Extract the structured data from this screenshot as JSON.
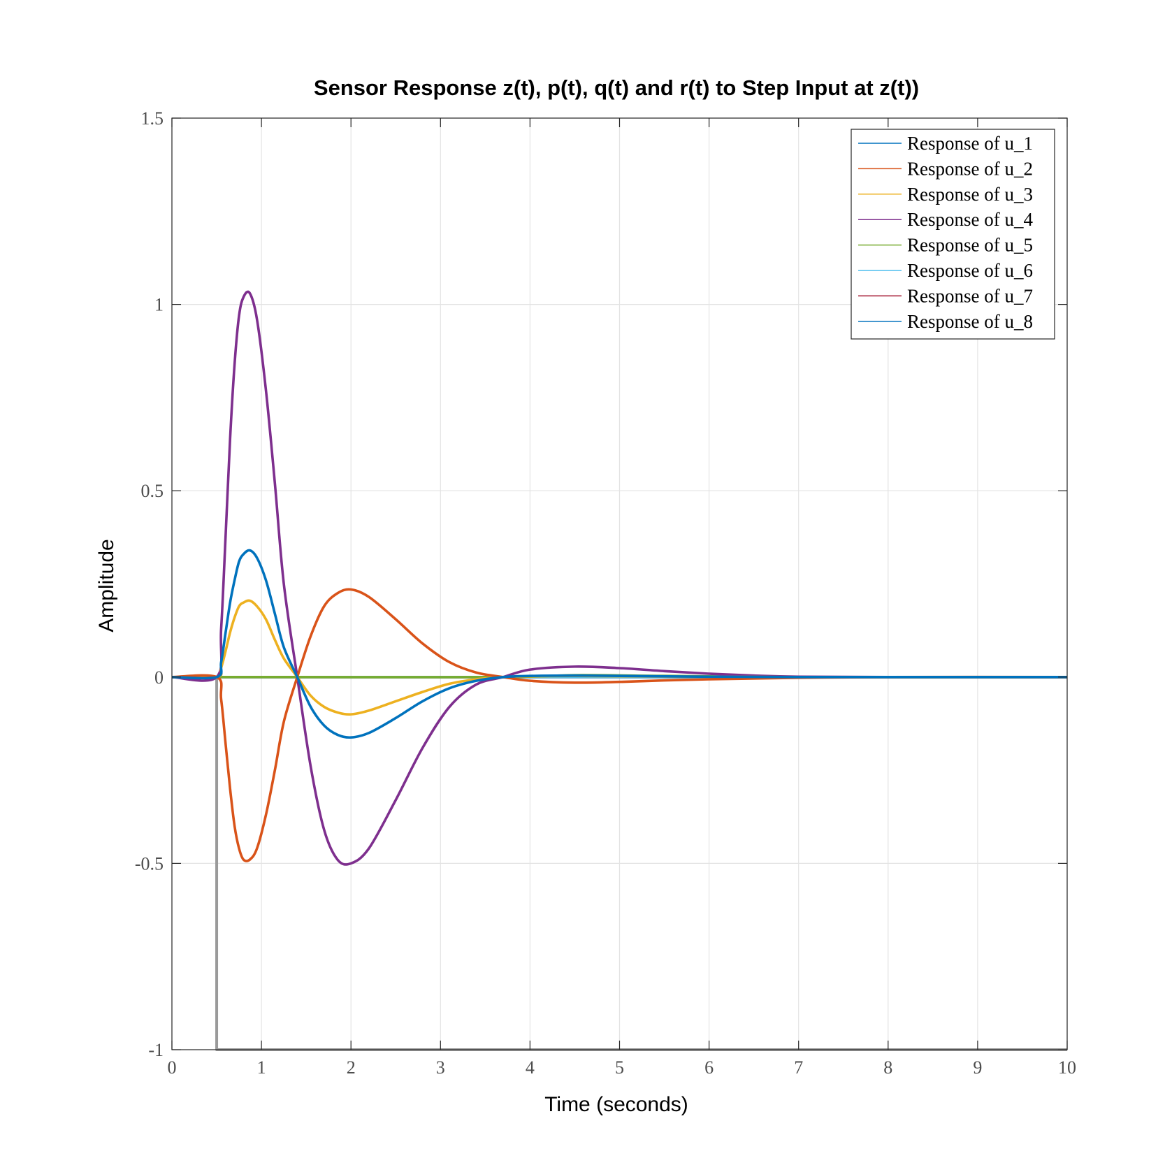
{
  "chart_data": {
    "type": "line",
    "title": "Sensor Response z(t), p(t), q(t) and r(t) to Step Input at z(t))",
    "xlabel": "Time (seconds)",
    "ylabel": "Amplitude",
    "xlim": [
      0,
      10
    ],
    "ylim": [
      -1,
      1.5
    ],
    "xticks": [
      0,
      1,
      2,
      3,
      4,
      5,
      6,
      7,
      8,
      9,
      10
    ],
    "xtick_labels": [
      "0",
      "1",
      "2",
      "3",
      "4",
      "5",
      "6",
      "7",
      "8",
      "9",
      "10"
    ],
    "yticks": [
      -1,
      -0.5,
      0,
      0.5,
      1,
      1.5
    ],
    "ytick_labels": [
      "-1",
      "-0.5",
      "0",
      "0.5",
      "1",
      "1.5"
    ],
    "grid": true,
    "legend_position": "top-right",
    "series": [
      {
        "name": "Response of u_1",
        "color": "#0072BD",
        "x": [
          0,
          0.5,
          0.55,
          0.6,
          0.65,
          0.7,
          0.75,
          0.8,
          0.87,
          0.95,
          1.05,
          1.15,
          1.25,
          1.4,
          1.55,
          1.7,
          1.85,
          2.0,
          2.2,
          2.5,
          2.8,
          3.1,
          3.4,
          3.7,
          4.0,
          4.5,
          5.0,
          6.0,
          7.0,
          8.0,
          10.0
        ],
        "y": [
          0,
          0,
          0.04,
          0.12,
          0.2,
          0.26,
          0.31,
          0.33,
          0.34,
          0.32,
          0.26,
          0.17,
          0.08,
          0,
          -0.08,
          -0.13,
          -0.155,
          -0.162,
          -0.15,
          -0.11,
          -0.065,
          -0.03,
          -0.01,
          0,
          0.003,
          0.004,
          0.003,
          0.001,
          0,
          0,
          0
        ]
      },
      {
        "name": "Response of u_2",
        "color": "#D95319",
        "x": [
          0,
          0.5,
          0.55,
          0.6,
          0.65,
          0.7,
          0.75,
          0.8,
          0.87,
          0.95,
          1.05,
          1.15,
          1.25,
          1.4,
          1.55,
          1.7,
          1.85,
          2.0,
          2.2,
          2.5,
          2.8,
          3.1,
          3.4,
          3.7,
          4.0,
          4.5,
          5.0,
          5.5,
          6.0,
          7.0,
          8.0,
          10.0
        ],
        "y": [
          0,
          0,
          -0.06,
          -0.18,
          -0.3,
          -0.4,
          -0.46,
          -0.49,
          -0.49,
          -0.46,
          -0.37,
          -0.25,
          -0.12,
          0,
          0.11,
          0.19,
          0.225,
          0.235,
          0.215,
          0.155,
          0.09,
          0.04,
          0.012,
          0,
          -0.01,
          -0.015,
          -0.013,
          -0.009,
          -0.006,
          -0.002,
          0,
          0
        ]
      },
      {
        "name": "Response of u_3",
        "color": "#EDB120",
        "x": [
          0,
          0.5,
          0.55,
          0.6,
          0.65,
          0.7,
          0.75,
          0.8,
          0.87,
          0.95,
          1.05,
          1.15,
          1.25,
          1.4,
          1.55,
          1.7,
          1.85,
          2.0,
          2.2,
          2.5,
          2.8,
          3.1,
          3.4,
          3.7,
          4.0,
          4.5,
          5.0,
          6.0,
          7.0,
          8.0,
          10.0
        ],
        "y": [
          0,
          0,
          0.025,
          0.07,
          0.12,
          0.16,
          0.19,
          0.2,
          0.205,
          0.19,
          0.155,
          0.1,
          0.05,
          0,
          -0.05,
          -0.08,
          -0.095,
          -0.1,
          -0.09,
          -0.065,
          -0.04,
          -0.018,
          -0.006,
          0,
          0.002,
          0.003,
          0.002,
          0.001,
          0,
          0,
          0
        ]
      },
      {
        "name": "Response of u_4",
        "color": "#7E2F8E",
        "x": [
          0,
          0.5,
          0.55,
          0.6,
          0.65,
          0.7,
          0.75,
          0.8,
          0.87,
          0.95,
          1.05,
          1.15,
          1.25,
          1.4,
          1.55,
          1.7,
          1.85,
          2.0,
          2.2,
          2.5,
          2.8,
          3.1,
          3.4,
          3.7,
          4.0,
          4.5,
          5.0,
          5.5,
          6.0,
          6.5,
          7.0,
          8.0,
          10.0
        ],
        "y": [
          0,
          0,
          0.13,
          0.38,
          0.64,
          0.84,
          0.97,
          1.02,
          1.03,
          0.96,
          0.77,
          0.52,
          0.25,
          0,
          -0.24,
          -0.41,
          -0.49,
          -0.5,
          -0.46,
          -0.33,
          -0.19,
          -0.08,
          -0.02,
          0,
          0.02,
          0.028,
          0.024,
          0.016,
          0.009,
          0.004,
          0.001,
          0,
          0
        ]
      },
      {
        "name": "Response of u_5",
        "color": "#77AC30",
        "x": [
          0,
          0.5,
          1.4,
          3.7,
          4.5,
          5.5,
          7.0,
          10.0
        ],
        "y": [
          0,
          0,
          0,
          0,
          0.005,
          0.003,
          0,
          0
        ]
      },
      {
        "name": "Response of u_6",
        "color": "#4DBEEE",
        "x": [
          0,
          10.0
        ],
        "y": [
          0,
          0
        ]
      },
      {
        "name": "Response of u_7",
        "color": "#A2142F",
        "x": [
          0,
          10.0
        ],
        "y": [
          0,
          0
        ]
      },
      {
        "name": "Response of u_8",
        "color": "#0072BD",
        "x": [
          0,
          10.0
        ],
        "y": [
          0,
          0
        ]
      },
      {
        "name": "",
        "color": "#9a9a9a",
        "x": [
          0.5,
          0.5,
          10.0
        ],
        "y": [
          0,
          -1,
          -1
        ]
      }
    ]
  }
}
